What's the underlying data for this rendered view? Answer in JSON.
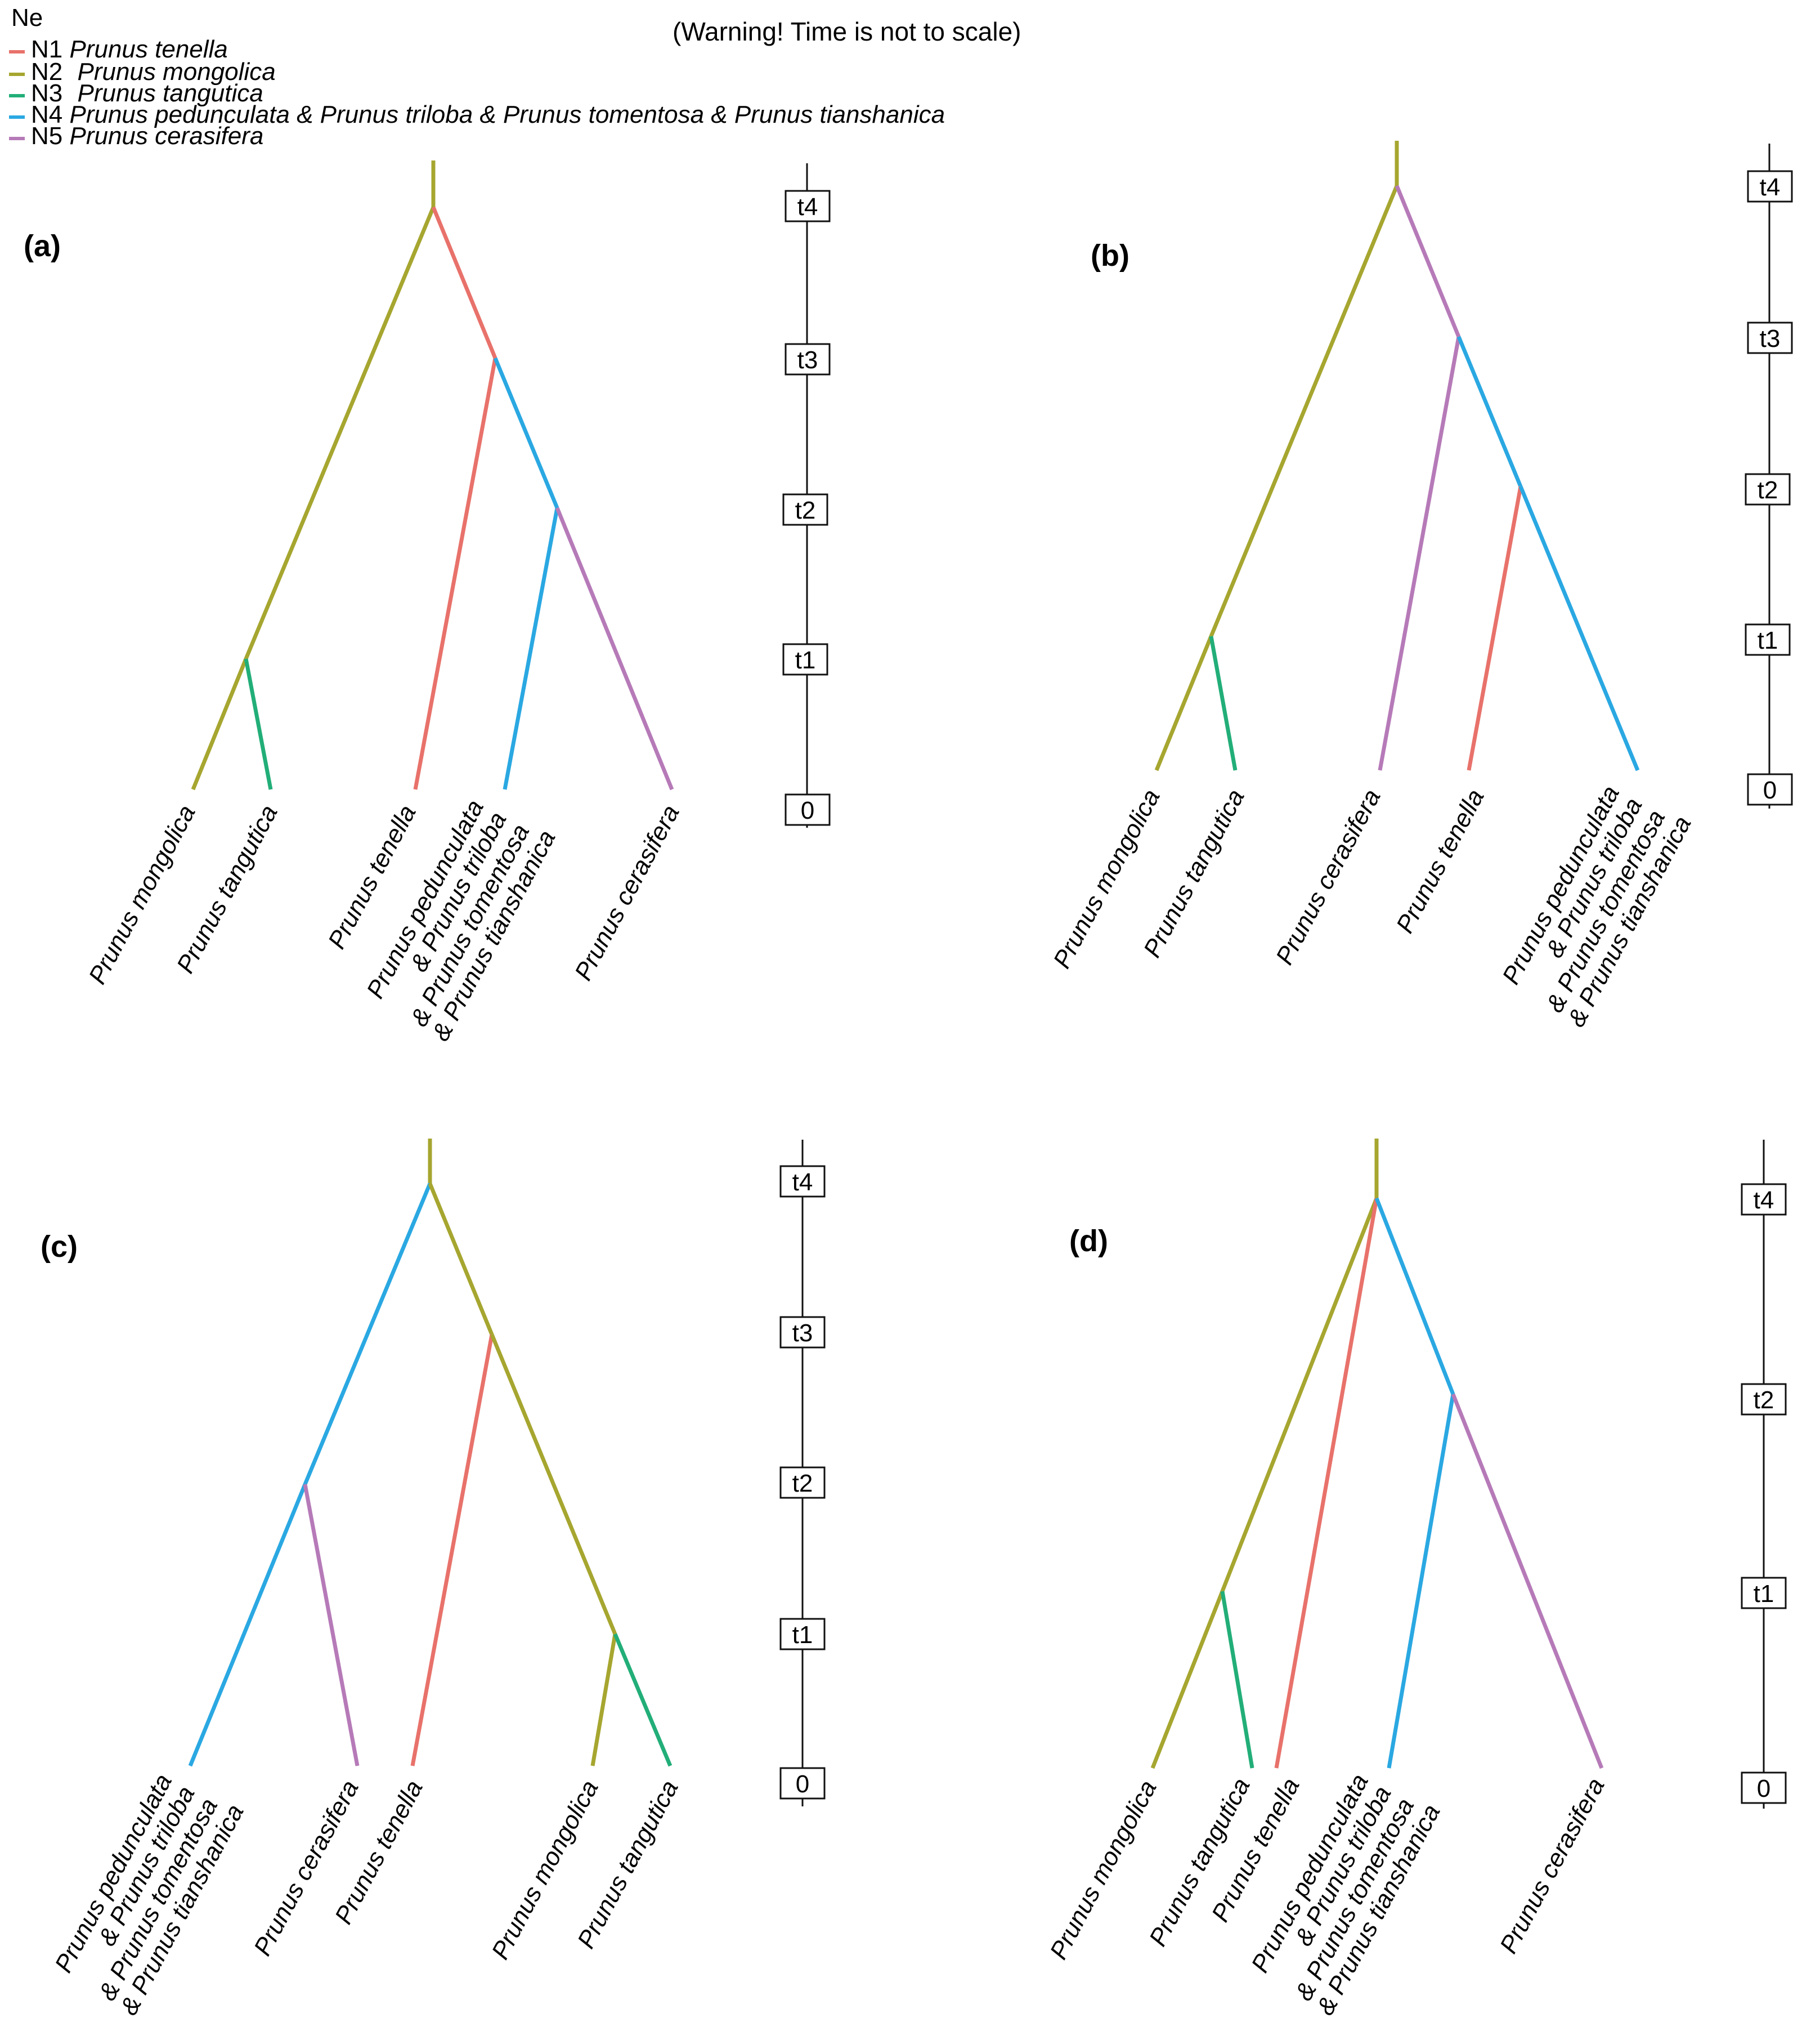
{
  "colors": {
    "N1": "#e8726b",
    "N2": "#a6a630",
    "N3": "#22ae78",
    "N4": "#2aa8e2",
    "N5": "#b67ab8"
  },
  "legend": {
    "title": "Ne",
    "items": [
      {
        "code": "N1",
        "species": "Prunus tenella",
        "color_key": "N1"
      },
      {
        "code": "N2",
        "species": "Prunus mongolica",
        "color_key": "N2"
      },
      {
        "code": "N3",
        "species": "Prunus tangutica",
        "color_key": "N3"
      },
      {
        "code": "N4",
        "species": "Prunus pedunculata & Prunus triloba & Prunus tomentosa & Prunus tianshanica",
        "color_key": "N4"
      },
      {
        "code": "N5",
        "species": "Prunus cerasifera",
        "color_key": "N5"
      }
    ]
  },
  "warning": "(Warning! Time is not to scale)",
  "panels": [
    {
      "label": "(a)",
      "ticks": [
        "t4",
        "t3",
        "t2",
        "t1",
        "0"
      ],
      "tips": [
        [
          "Prunus mongolica"
        ],
        [
          "Prunus tangutica"
        ],
        [
          "Prunus tenella"
        ],
        [
          "Prunus pedunculata",
          "& Prunus triloba",
          "& Prunus tomentosa",
          "& Prunus tianshanica"
        ],
        [
          "Prunus cerasifera"
        ]
      ]
    },
    {
      "label": "(b)",
      "ticks": [
        "t4",
        "t3",
        "t2",
        "t1",
        "0"
      ],
      "tips": [
        [
          "Prunus mongolica"
        ],
        [
          "Prunus tangutica"
        ],
        [
          "Prunus cerasifera"
        ],
        [
          "Prunus tenella"
        ],
        [
          "Prunus pedunculata",
          "& Prunus triloba",
          "& Prunus tomentosa",
          "& Prunus tianshanica"
        ]
      ]
    },
    {
      "label": "(c)",
      "ticks": [
        "t4",
        "t3",
        "t2",
        "t1",
        "0"
      ],
      "tips": [
        [
          "Prunus pedunculata",
          "& Prunus triloba",
          "& Prunus tomentosa",
          "& Prunus tianshanica"
        ],
        [
          "Prunus cerasifera"
        ],
        [
          "Prunus tenella"
        ],
        [
          "Prunus mongolica"
        ],
        [
          "Prunus tangutica"
        ]
      ]
    },
    {
      "label": "(d)",
      "ticks": [
        "t4",
        "t2",
        "t1",
        "0"
      ],
      "tips": [
        [
          "Prunus mongolica"
        ],
        [
          "Prunus tangutica"
        ],
        [
          "Prunus tenella"
        ],
        [
          "Prunus pedunculata",
          "& Prunus triloba",
          "& Prunus tomentosa",
          "& Prunus tianshanica"
        ],
        [
          "Prunus cerasifera"
        ]
      ]
    }
  ]
}
